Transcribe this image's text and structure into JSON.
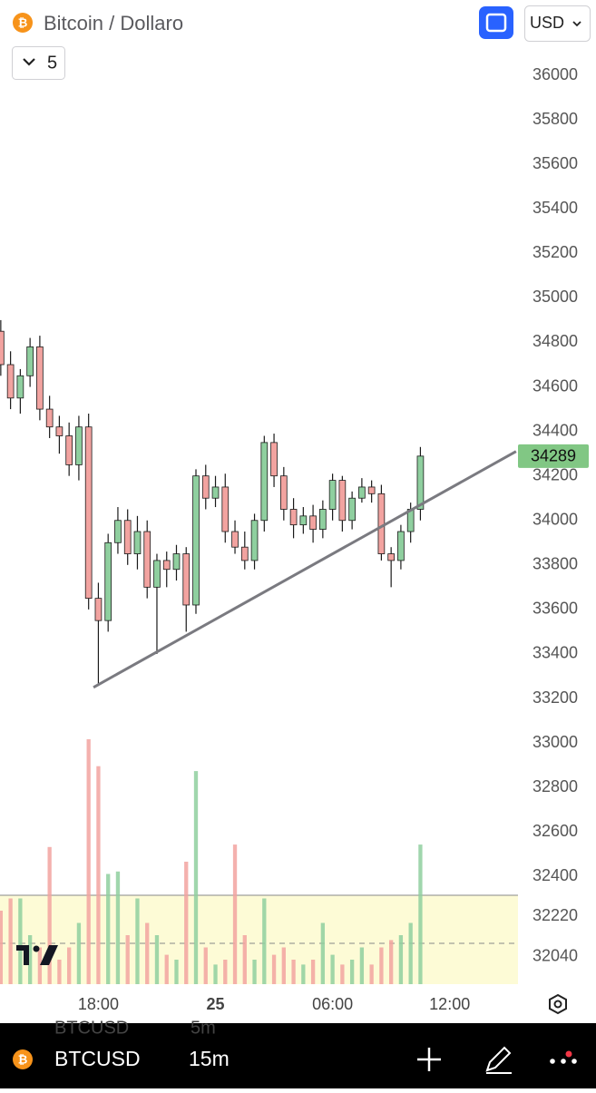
{
  "header": {
    "title": "Bitcoin / Dollaro",
    "indicator_count": "5",
    "currency": "USD"
  },
  "chart_data": {
    "type": "candlestick",
    "x": [
      13.0,
      13.5,
      14.0,
      14.5,
      15.0,
      15.5,
      16.0,
      16.5,
      17.0,
      17.5,
      18.0,
      18.5,
      19.0,
      19.5,
      20.0,
      20.5,
      21.0,
      21.5,
      22.0,
      22.5,
      23.0,
      23.5,
      24.0,
      24.5,
      25.0,
      25.5,
      26.0,
      26.5,
      27.0,
      27.5,
      28.0,
      28.5,
      29.0,
      29.5,
      30.0,
      30.5,
      31.0,
      31.5,
      32.0,
      32.5,
      33.0,
      33.5,
      34.0,
      34.5
    ],
    "open": [
      34850,
      34700,
      34550,
      34650,
      34780,
      34500,
      34420,
      34380,
      34250,
      34420,
      33650,
      33550,
      33900,
      34000,
      33850,
      33950,
      33700,
      33820,
      33780,
      33850,
      33620,
      34200,
      34100,
      34150,
      33950,
      33880,
      33820,
      34000,
      34350,
      34200,
      34050,
      33980,
      34020,
      33960,
      34050,
      34180,
      34000,
      34100,
      34150,
      34120,
      33850,
      33820,
      33950,
      34050
    ],
    "high": [
      34900,
      34760,
      34680,
      34820,
      34830,
      34560,
      34470,
      34440,
      34470,
      34480,
      33720,
      33940,
      34060,
      34050,
      34020,
      34000,
      33850,
      33860,
      33890,
      33880,
      34230,
      34250,
      34200,
      34210,
      34000,
      33950,
      34030,
      34380,
      34390,
      34240,
      34100,
      34060,
      34070,
      34090,
      34210,
      34200,
      34130,
      34190,
      34180,
      34160,
      33880,
      33980,
      34080,
      34330
    ],
    "low": [
      34650,
      34500,
      34480,
      34600,
      34450,
      34370,
      34300,
      34200,
      34180,
      33600,
      33260,
      33500,
      33850,
      33800,
      33780,
      33650,
      33400,
      33700,
      33730,
      33500,
      33580,
      34050,
      34060,
      33900,
      33850,
      33780,
      33780,
      33950,
      34150,
      34000,
      33920,
      33940,
      33900,
      33920,
      34000,
      33950,
      33960,
      34080,
      34080,
      33820,
      33700,
      33780,
      33900,
      34000
    ],
    "close": [
      34700,
      34550,
      34650,
      34780,
      34500,
      34420,
      34380,
      34250,
      34420,
      33650,
      33550,
      33900,
      34000,
      33850,
      33950,
      33700,
      33820,
      33780,
      33850,
      33620,
      34200,
      34100,
      34150,
      33950,
      33880,
      33820,
      34000,
      34350,
      34200,
      34050,
      33980,
      34020,
      33960,
      34050,
      34180,
      34000,
      34100,
      34150,
      34120,
      33850,
      33820,
      33950,
      34050,
      34289
    ],
    "volume": [
      30,
      35,
      35,
      20,
      15,
      56,
      10,
      15,
      25,
      100,
      89,
      45,
      46,
      20,
      35,
      25,
      20,
      12,
      10,
      50,
      87,
      15,
      8,
      10,
      57,
      20,
      10,
      35,
      12,
      15,
      10,
      8,
      10,
      25,
      12,
      8,
      10,
      15,
      8,
      15,
      18,
      20,
      25,
      57
    ],
    "up_color": "#8fcf9f",
    "down_color": "#f2a3a0",
    "trendline": {
      "x": [
        17.75,
        39.4
      ],
      "y": [
        33250,
        34310
      ],
      "color": "#7a7a80"
    },
    "xlim": [
      12.96,
      39.5
    ],
    "xticks": [
      {
        "value": 18,
        "label": "18:00"
      },
      {
        "value": 24,
        "label": "25"
      },
      {
        "value": 30,
        "label": "06:00"
      },
      {
        "value": 36,
        "label": "12:00"
      }
    ],
    "ylim": [
      31900,
      36100
    ],
    "yticks": [
      32040,
      32220,
      32400,
      32600,
      32800,
      33000,
      33200,
      33400,
      33600,
      33800,
      34000,
      34200,
      34400,
      34600,
      34800,
      35000,
      35200,
      35400,
      35600,
      35800,
      36000
    ]
  },
  "toolbar": {
    "symbol": "BTCUSD",
    "interval": "15m",
    "above": {
      "symbol": "BTCUSD",
      "interval": "5m"
    }
  }
}
